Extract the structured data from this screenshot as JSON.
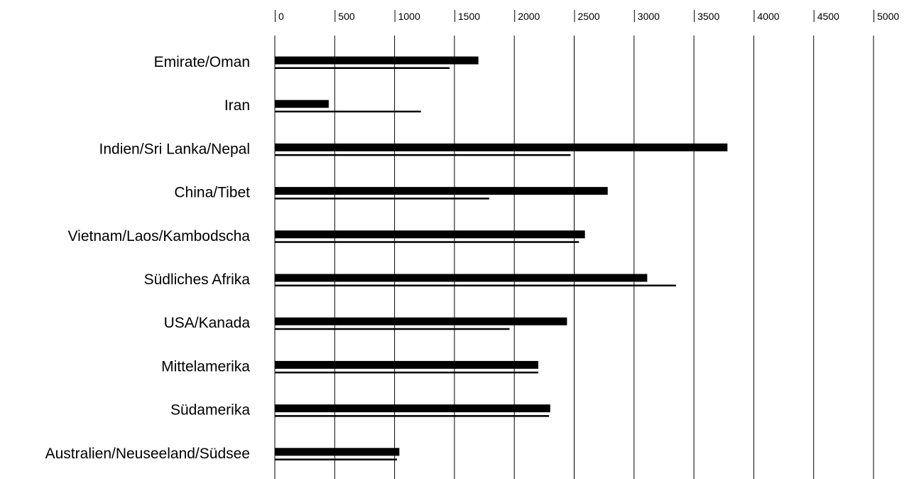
{
  "chart_data": {
    "type": "bar",
    "orientation": "horizontal",
    "title": "",
    "xlabel": "",
    "ylabel": "",
    "xlim": [
      0,
      5000
    ],
    "x_ticks": [
      0,
      500,
      1000,
      1500,
      2000,
      2500,
      3000,
      3500,
      4000,
      4500,
      5000
    ],
    "tick_labels": [
      "0",
      "500",
      "1000",
      "1500",
      "2000",
      "2500",
      "3000",
      "3500",
      "4000",
      "4500",
      "5000"
    ],
    "grid": "vertical",
    "legend": "none",
    "categories": [
      "Emirate/Oman",
      "Iran",
      "Indien/Sri Lanka/Nepal",
      "China/Tibet",
      "Vietnam/Laos/Kambodscha",
      "Südliches Afrika",
      "USA/Kanada",
      "Mittelamerika",
      "Südamerika",
      "Australien/Neuseeland/Südsee"
    ],
    "series": [
      {
        "style": "thick",
        "color": "#000000",
        "values": [
          1700,
          450,
          3780,
          2780,
          2590,
          3110,
          2440,
          2200,
          2300,
          1040
        ]
      },
      {
        "style": "thin",
        "color": "#000000",
        "values": [
          1460,
          1220,
          2470,
          1790,
          2540,
          3350,
          1960,
          2200,
          2290,
          1020
        ]
      }
    ]
  }
}
